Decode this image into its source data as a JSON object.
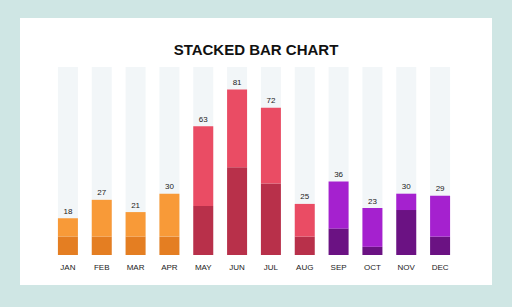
{
  "chart_data": {
    "type": "bar",
    "title": "STACKED BAR CHART",
    "categories": [
      "JAN",
      "FEB",
      "MAR",
      "APR",
      "MAY",
      "JUN",
      "JUL",
      "AUG",
      "SEP",
      "OCT",
      "NOV",
      "DEC"
    ],
    "stacked": true,
    "tick_labels": "x",
    "grid": false,
    "ylim": [
      0,
      92
    ],
    "series": [
      {
        "values": [
          9,
          9,
          9,
          9,
          24,
          43,
          35,
          9,
          13,
          4,
          22,
          9
        ],
        "colors": [
          "#e47e22",
          "#e47e22",
          "#e47e22",
          "#e47e22",
          "#b8304a",
          "#b8304a",
          "#b8304a",
          "#b8304a",
          "#6b1283",
          "#6b1283",
          "#6b1283",
          "#6b1283"
        ]
      },
      {
        "values": [
          9,
          18,
          12,
          21,
          39,
          38,
          37,
          16,
          23,
          19,
          8,
          20
        ],
        "colors": [
          "#f89a38",
          "#f89a38",
          "#f89a38",
          "#f89a38",
          "#ea4c64",
          "#ea4c64",
          "#ea4c64",
          "#ea4c64",
          "#a521cf",
          "#a521cf",
          "#a521cf",
          "#a521cf"
        ]
      }
    ],
    "totals": [
      18,
      27,
      21,
      30,
      63,
      81,
      72,
      25,
      36,
      23,
      30,
      29
    ]
  }
}
